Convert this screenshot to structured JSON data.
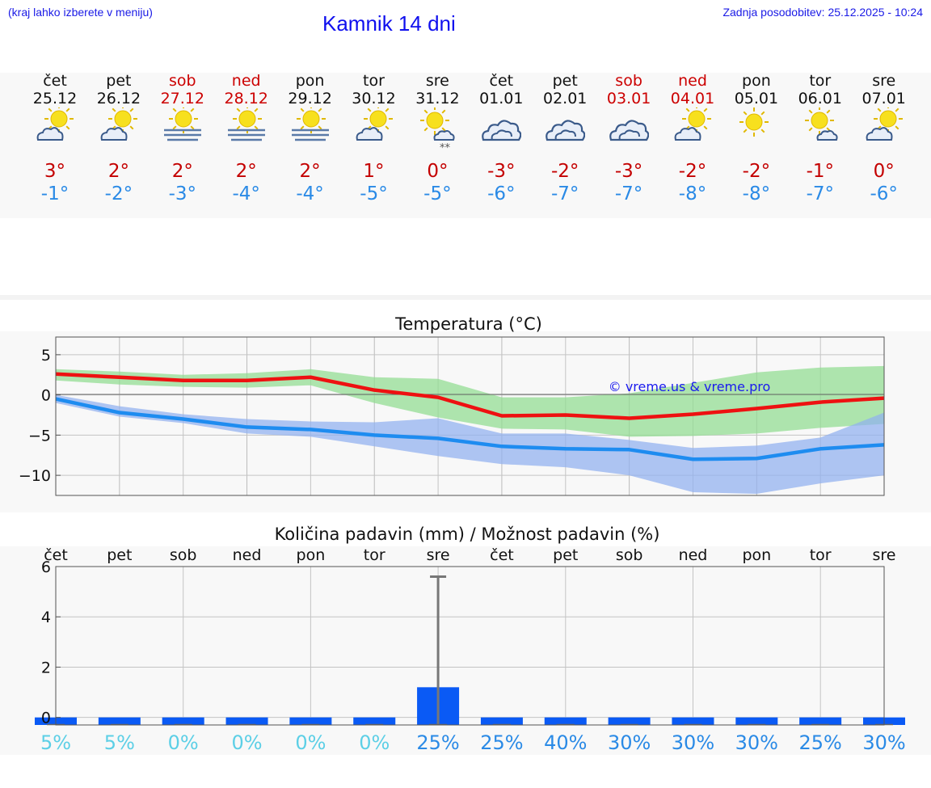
{
  "header": {
    "menu_hint": "(kraj lahko izberete v meniju)",
    "title": "Kamnik 14 dni",
    "last_update": "Zadnja posodobitev: 25.12.2025 - 10:24"
  },
  "days": [
    {
      "name": "čet",
      "date": "25.12",
      "weekend": false,
      "icon": "sun-cloud-icon",
      "tmax": "3°",
      "tmin": "-1°"
    },
    {
      "name": "pet",
      "date": "26.12",
      "weekend": false,
      "icon": "sun-cloud-icon",
      "tmax": "2°",
      "tmin": "-2°"
    },
    {
      "name": "sob",
      "date": "27.12",
      "weekend": true,
      "icon": "sun-fog-icon",
      "tmax": "2°",
      "tmin": "-3°"
    },
    {
      "name": "ned",
      "date": "28.12",
      "weekend": true,
      "icon": "sun-fog-icon",
      "tmax": "2°",
      "tmin": "-4°"
    },
    {
      "name": "pon",
      "date": "29.12",
      "weekend": false,
      "icon": "sun-fog-icon",
      "tmax": "2°",
      "tmin": "-4°"
    },
    {
      "name": "tor",
      "date": "30.12",
      "weekend": false,
      "icon": "sun-cloud-icon",
      "tmax": "1°",
      "tmin": "-5°"
    },
    {
      "name": "sre",
      "date": "31.12",
      "weekend": false,
      "icon": "sun-cloud-snow-icon",
      "tmax": "0°",
      "tmin": "-5°"
    },
    {
      "name": "čet",
      "date": "01.01",
      "weekend": false,
      "icon": "cloud-icon",
      "tmax": "-3°",
      "tmin": "-6°"
    },
    {
      "name": "pet",
      "date": "02.01",
      "weekend": false,
      "icon": "cloud-icon",
      "tmax": "-2°",
      "tmin": "-7°"
    },
    {
      "name": "sob",
      "date": "03.01",
      "weekend": true,
      "icon": "cloud-icon",
      "tmax": "-3°",
      "tmin": "-7°"
    },
    {
      "name": "ned",
      "date": "04.01",
      "weekend": true,
      "icon": "sun-cloud-icon",
      "tmax": "-2°",
      "tmin": "-8°"
    },
    {
      "name": "pon",
      "date": "05.01",
      "weekend": false,
      "icon": "sun-icon",
      "tmax": "-2°",
      "tmin": "-8°"
    },
    {
      "name": "tor",
      "date": "06.01",
      "weekend": false,
      "icon": "sun-small-cloud-icon",
      "tmax": "-1°",
      "tmin": "-7°"
    },
    {
      "name": "sre",
      "date": "07.01",
      "weekend": false,
      "icon": "sun-cloud-icon",
      "tmax": "0°",
      "tmin": "-6°"
    }
  ],
  "chart_data": [
    {
      "type": "line",
      "title": "Temperatura (°C)",
      "x_count": 14,
      "ylim": [
        -12.5,
        7.2
      ],
      "yticks": [
        5,
        0,
        -5,
        -10
      ],
      "ytick_labels": [
        "5",
        "0",
        "−5",
        "−10"
      ],
      "grid": true,
      "watermark": "© vreme.us & vreme.pro",
      "series": [
        {
          "name": "max",
          "color": "#ee1111",
          "values": [
            2.6,
            2.2,
            1.8,
            1.8,
            2.2,
            0.6,
            -0.3,
            -2.6,
            -2.5,
            -2.9,
            -2.4,
            -1.7,
            -0.9,
            -0.4
          ],
          "band_low": [
            1.8,
            1.3,
            1.0,
            0.9,
            1.2,
            -1.0,
            -2.8,
            -4.2,
            -4.3,
            -5.2,
            -5.1,
            -4.8,
            -4.1,
            -3.6
          ],
          "band_high": [
            3.2,
            2.9,
            2.5,
            2.7,
            3.2,
            2.2,
            2.0,
            -0.3,
            -0.3,
            0.2,
            1.5,
            2.8,
            3.4,
            3.6
          ],
          "band_color": "#90dc90"
        },
        {
          "name": "min",
          "color": "#1e8cf0",
          "values": [
            -0.5,
            -2.2,
            -3.0,
            -4.0,
            -4.3,
            -5.0,
            -5.4,
            -6.4,
            -6.7,
            -6.8,
            -8.0,
            -7.9,
            -6.7,
            -6.2
          ],
          "band_low": [
            -1.0,
            -2.7,
            -3.5,
            -4.8,
            -5.2,
            -6.4,
            -7.6,
            -8.6,
            -9.0,
            -10.0,
            -12.1,
            -12.3,
            -11.0,
            -10.0
          ],
          "band_high": [
            0.0,
            -1.4,
            -2.4,
            -3.0,
            -3.3,
            -3.4,
            -2.9,
            -4.8,
            -4.8,
            -5.6,
            -6.6,
            -6.3,
            -5.3,
            -2.2
          ],
          "band_color": "#90b0f0"
        }
      ]
    },
    {
      "type": "bar",
      "title": "Količina padavin (mm) / Možnost padavin (%)",
      "categories": [
        "čet",
        "pet",
        "sob",
        "ned",
        "pon",
        "tor",
        "sre",
        "čet",
        "pet",
        "sob",
        "ned",
        "pon",
        "tor",
        "sre"
      ],
      "values": [
        0,
        0,
        0,
        0,
        0,
        0,
        1.2,
        0,
        0,
        0,
        0,
        0,
        0,
        0
      ],
      "error_max": [
        0,
        0,
        0,
        0,
        0,
        0,
        5.6,
        0,
        0,
        0,
        0,
        0,
        0,
        0
      ],
      "ylim": [
        -0.3,
        6
      ],
      "yticks": [
        0,
        2,
        4,
        6
      ],
      "ytick_labels": [
        "0",
        "2",
        "4",
        "6"
      ],
      "bar_color": "#0a5af5",
      "probability": [
        "5%",
        "5%",
        "0%",
        "0%",
        "0%",
        "0%",
        "25%",
        "25%",
        "40%",
        "30%",
        "30%",
        "30%",
        "25%",
        "30%"
      ],
      "probability_colors": {
        "low": "#5ccfe6",
        "high": "#2a8ae6"
      }
    }
  ]
}
